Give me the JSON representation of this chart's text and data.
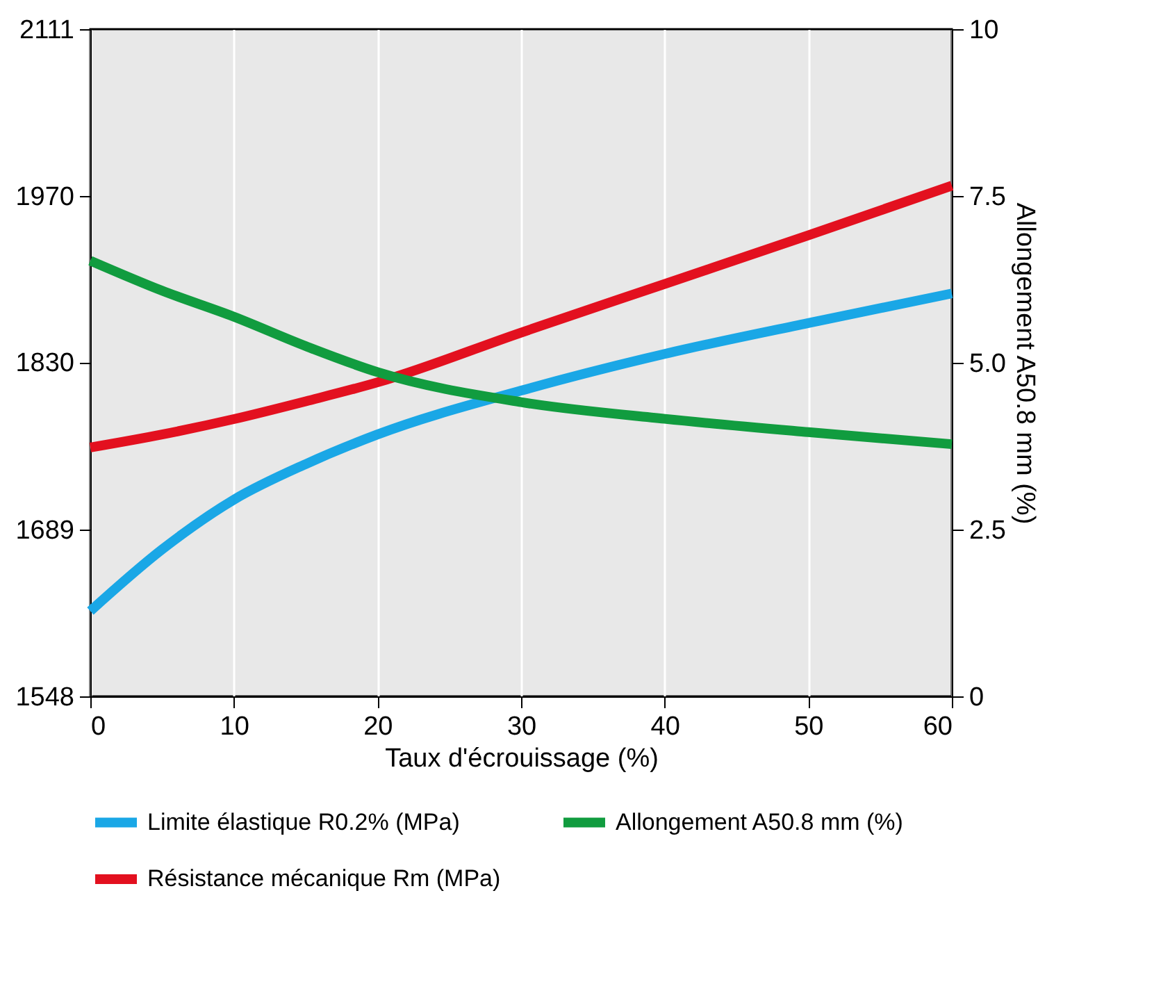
{
  "chart_data": {
    "type": "line",
    "xlabel": "Taux d'écrouissage (%)",
    "y2label": "Allongement A50.8 mm (%)",
    "x": [
      0,
      5,
      10,
      15,
      20,
      30,
      40,
      50,
      60
    ],
    "series": [
      {
        "name": "Limite élastique R0.2% (MPa)",
        "color": "#1aa7e6",
        "values": [
          1620,
          1672,
          1714,
          1744,
          1769,
          1806,
          1837,
          1863,
          1888
        ]
      },
      {
        "name": "Allongement A50.8 mm (%)",
        "color": "#119c3f",
        "axis": "y2",
        "values": [
          6.53,
          6.08,
          5.69,
          5.25,
          4.86,
          4.41,
          4.16,
          3.96,
          3.78
        ]
      },
      {
        "name": "Résistance mécanique Rm (MPa)",
        "color": "#e3101f",
        "values": [
          1758,
          1769,
          1782,
          1797,
          1813,
          1855,
          1896,
          1937,
          1979
        ]
      }
    ],
    "xlim": [
      0,
      60
    ],
    "xticks": [
      0,
      10,
      20,
      30,
      40,
      50,
      60
    ],
    "ylim": [
      1548,
      2111
    ],
    "yticks": [
      1548,
      1689,
      1830,
      1970,
      2111
    ],
    "y2lim": [
      0,
      10
    ],
    "y2ticks": [
      0,
      {
        "value": 2.5,
        "label": "2.5"
      },
      {
        "value": 5,
        "label": "5.0"
      },
      {
        "value": 7.5,
        "label": "7.5"
      },
      10
    ],
    "grid": "x",
    "legend": "bottom",
    "marker": "none",
    "line_style": "solid"
  }
}
